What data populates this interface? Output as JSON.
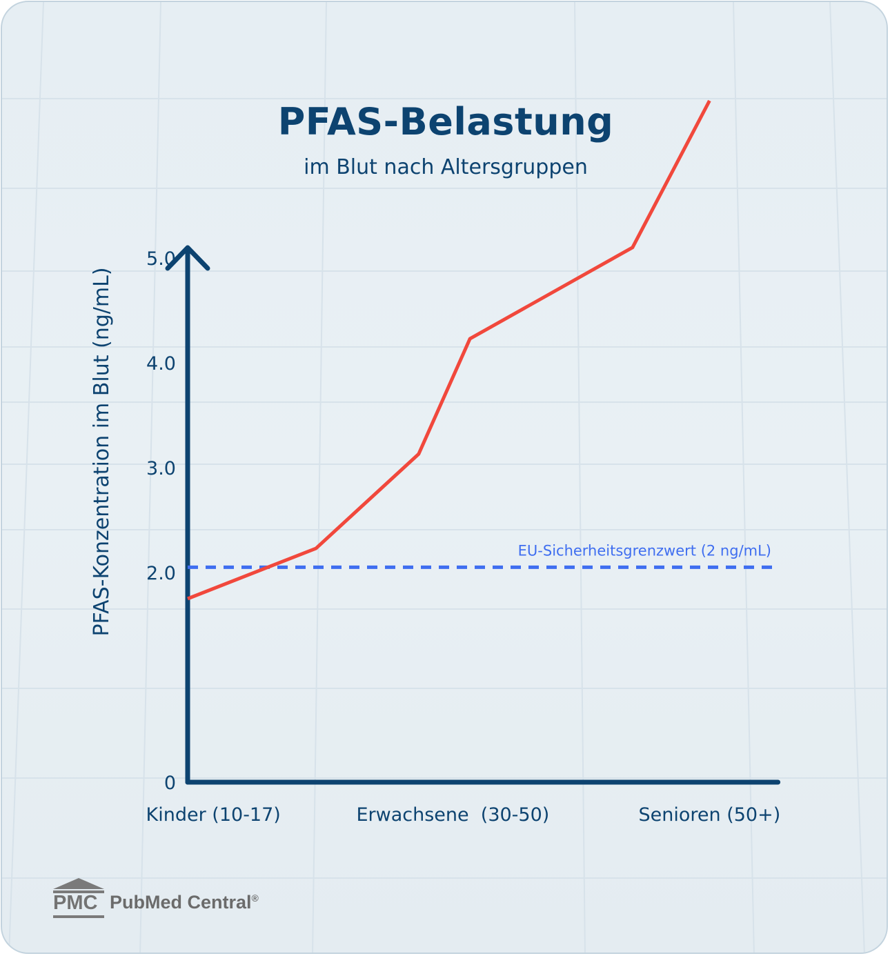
{
  "title": "PFAS-Belastung",
  "subtitle": "im Blut nach Altersgruppen",
  "colors": {
    "line": "#f1483c",
    "threshold": "#3f6ef0",
    "axis": "#0d4370",
    "text": "#0d4370"
  },
  "chart_data": {
    "type": "line",
    "ylabel": "PFAS-Konzentration im Blut (ng/mL)",
    "xlabel": "",
    "y_ticks": [
      "0",
      "2.0",
      "3.0",
      "4.0",
      "5.0"
    ],
    "y_tick_values": [
      0,
      2.0,
      3.0,
      4.0,
      5.0
    ],
    "ylim": [
      0,
      6.5
    ],
    "x_categories": [
      "Kinder (10-17)",
      "Erwachsene  (30-50)",
      "Senioren (50+)"
    ],
    "x_category_positions": [
      0.3,
      3.1,
      6.1
    ],
    "xlim": [
      0,
      6.9
    ],
    "series": [
      {
        "x": [
          0,
          1.5,
          2.7,
          3.3,
          5.2,
          6.1
        ],
        "y": [
          1.75,
          2.23,
          3.13,
          4.23,
          5.1,
          6.5
        ]
      }
    ],
    "threshold": {
      "value": 2.05,
      "label": "EU-Sicherheitsgrenzwert (2 ng/mL)"
    },
    "grid": false
  },
  "brand": {
    "logo_text": "PMC",
    "name": "PubMed Central",
    "mark": "®"
  }
}
